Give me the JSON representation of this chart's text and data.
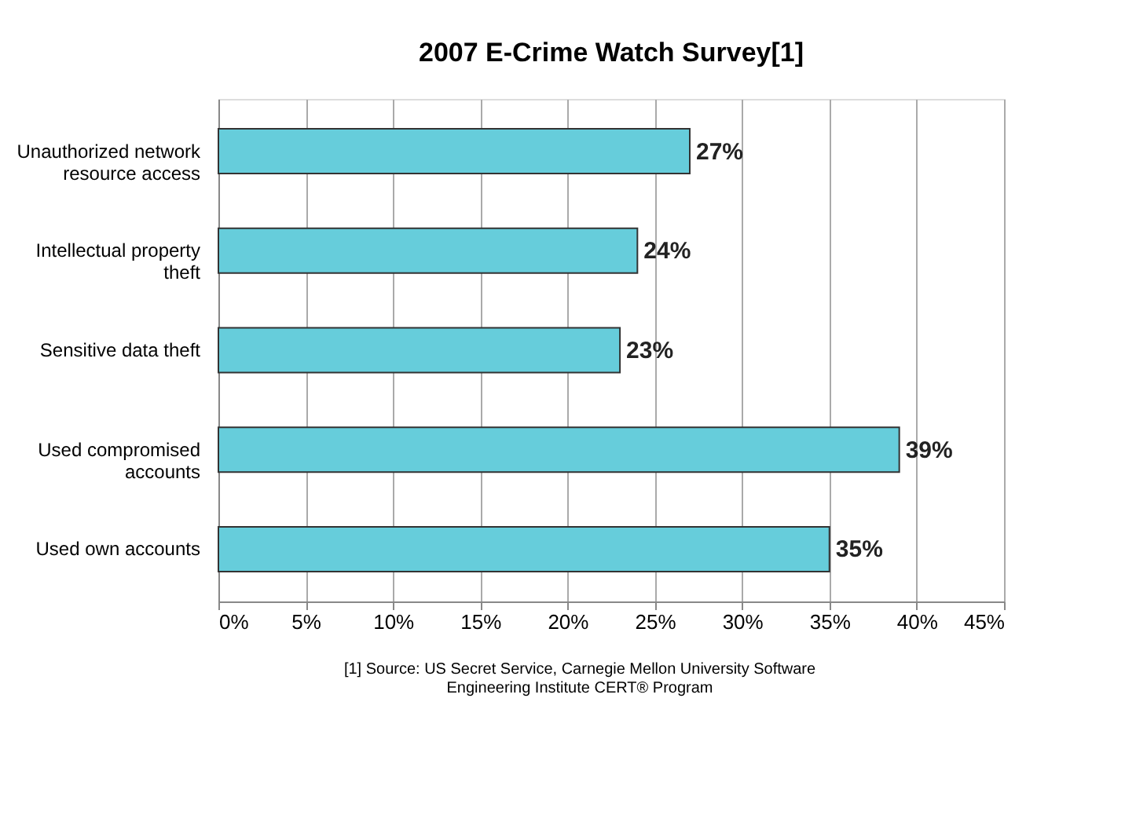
{
  "chart_data": {
    "type": "bar",
    "orientation": "horizontal",
    "title": "2007 E-Crime Watch Survey[1]",
    "categories": [
      "Unauthorized network resource access",
      "Intellectual property theft",
      "Sensitive data theft",
      "Used compromised accounts",
      "Used own accounts"
    ],
    "values": [
      27,
      24,
      23,
      39,
      35
    ],
    "value_labels": [
      "27%",
      "24%",
      "23%",
      "39%",
      "35%"
    ],
    "color": "#66cddb",
    "xlim": [
      0,
      45
    ],
    "xticks": [
      {
        "value": 0,
        "label": "0%"
      },
      {
        "value": 5,
        "label": "5%"
      },
      {
        "value": 10,
        "label": "10%"
      },
      {
        "value": 15,
        "label": "15%"
      },
      {
        "value": 20,
        "label": "20%"
      },
      {
        "value": 25,
        "label": "25%"
      },
      {
        "value": 30,
        "label": "30%"
      },
      {
        "value": 35,
        "label": "35%"
      },
      {
        "value": 40,
        "label": "40%"
      },
      {
        "value": 45,
        "label": "45%"
      }
    ],
    "grid": "x",
    "annotations": [
      "[1] Source: US Secret Service, Carnegie Mellon University Software Engineering Institute CERT® Program"
    ]
  }
}
